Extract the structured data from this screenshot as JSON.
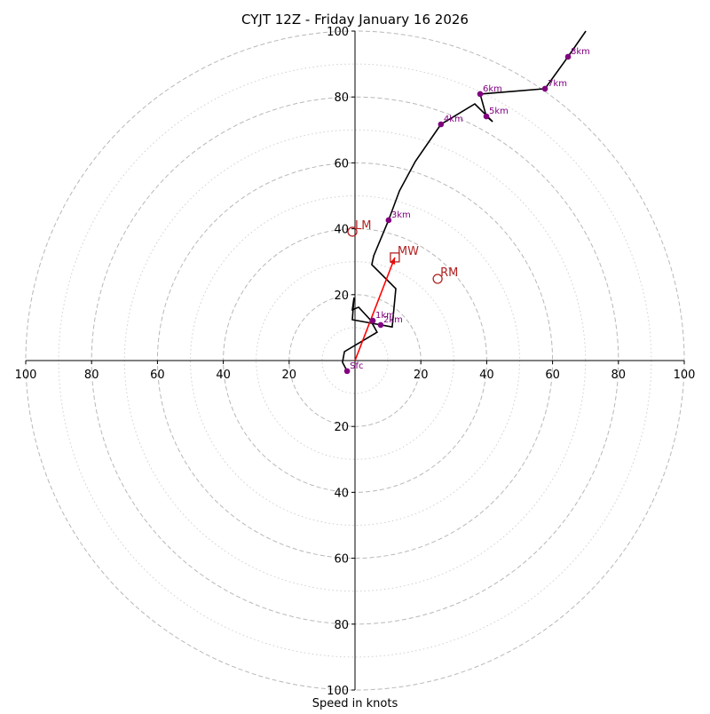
{
  "chart_data": {
    "type": "line",
    "subtype": "hodograph",
    "title": "CYJT 12Z - Friday January 16 2026",
    "xlabel": "Speed in knots",
    "ylabel": "",
    "xlim": [
      -100,
      100
    ],
    "ylim": [
      -100,
      100
    ],
    "grid": true,
    "ring_major": [
      20,
      40,
      60,
      80,
      100
    ],
    "ring_minor": [
      10,
      30,
      50,
      70,
      90
    ],
    "x_tick_labels": [
      "100",
      "80",
      "60",
      "40",
      "20",
      "20",
      "40",
      "60",
      "80",
      "100"
    ],
    "x_tick_values": [
      -100,
      -80,
      -60,
      -40,
      -20,
      20,
      40,
      60,
      80,
      100
    ],
    "y_tick_labels": [
      "100",
      "80",
      "60",
      "40",
      "20",
      "20",
      "40",
      "60",
      "80",
      "100"
    ],
    "y_tick_values": [
      100,
      80,
      60,
      40,
      20,
      -20,
      -40,
      -60,
      -80,
      -100
    ],
    "profile": {
      "name": "wind profile",
      "color": "#000000",
      "u": [
        -2.4,
        -3.8,
        -3.2,
        6.7,
        4.6,
        1.1,
        -0.8,
        -0.3,
        -0.8,
        11.3,
        12.4,
        5.1,
        5.7,
        10.2,
        13.5,
        18.3,
        26.1,
        36.4,
        41.8,
        39.9,
        38.0,
        57.7,
        64.7,
        70.1
      ],
      "v": [
        -3.2,
        -0.5,
        2.7,
        8.6,
        12.4,
        16.2,
        15.4,
        19.1,
        12.4,
        10.2,
        21.8,
        29.1,
        31.8,
        42.6,
        51.5,
        60.4,
        71.7,
        77.9,
        72.5,
        74.1,
        80.9,
        82.5,
        92.2,
        100.0
      ]
    },
    "height_markers": [
      {
        "label": "Sfc",
        "u": -2.4,
        "v": -3.2
      },
      {
        "label": "1km",
        "u": 5.4,
        "v": 12.1
      },
      {
        "label": "2km",
        "u": 7.8,
        "v": 10.8
      },
      {
        "label": "3km",
        "u": 10.2,
        "v": 42.6
      },
      {
        "label": "4km",
        "u": 26.1,
        "v": 71.7
      },
      {
        "label": "5km",
        "u": 39.9,
        "v": 74.1
      },
      {
        "label": "6km",
        "u": 38.0,
        "v": 80.9
      },
      {
        "label": "7km",
        "u": 57.7,
        "v": 82.5
      },
      {
        "label": "8km",
        "u": 64.7,
        "v": 92.2
      }
    ],
    "marker_color": "#800080",
    "storm_motion": [
      {
        "label": "LM",
        "u": -0.8,
        "v": 39.1,
        "shape": "circle"
      },
      {
        "label": "MW",
        "u": 12.1,
        "v": 31.3,
        "shape": "square"
      },
      {
        "label": "RM",
        "u": 25.1,
        "v": 24.8,
        "shape": "circle"
      }
    ],
    "storm_color": "#b22222",
    "mean_wind_vector": {
      "u": 12.1,
      "v": 31.3,
      "color": "#ff0000"
    }
  }
}
